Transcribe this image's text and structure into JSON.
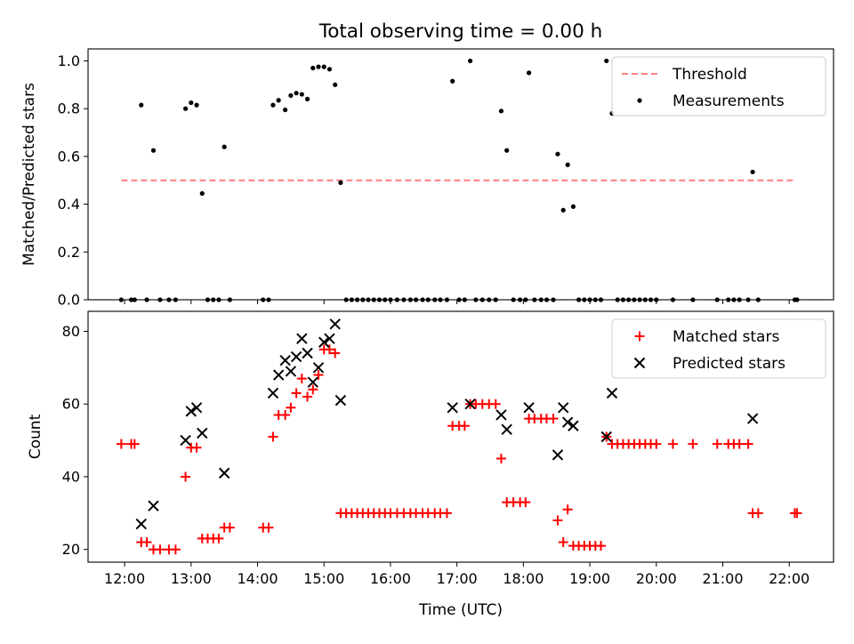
{
  "figure": {
    "title": "Total observing time = 0.00 h",
    "xlabel": "Time (UTC)"
  },
  "chart_data": [
    {
      "type": "scatter",
      "ylabel": "Matched/Predicted stars",
      "xlim": [
        "11:27",
        "22:40"
      ],
      "ylim": [
        0,
        1.05
      ],
      "yticks": [
        "0.0",
        "0.2",
        "0.4",
        "0.6",
        "0.8",
        "1.0"
      ],
      "xticks": [
        "12:00",
        "13:00",
        "14:00",
        "15:00",
        "16:00",
        "17:00",
        "18:00",
        "19:00",
        "20:00",
        "21:00",
        "22:00"
      ],
      "legend": {
        "placement": "top-right",
        "entries": [
          "Threshold",
          "Measurements"
        ]
      },
      "threshold": {
        "name": "Threshold",
        "value": 0.5,
        "x_start": "11:57",
        "x_end": "22:05",
        "color": "#ff7f7f",
        "style": "dashed"
      },
      "series": [
        {
          "name": "Measurements",
          "color": "#000000",
          "marker": "dot",
          "points": [
            [
              "11:57",
              0
            ],
            [
              "12:06",
              0
            ],
            [
              "12:09",
              0
            ],
            [
              "12:15",
              0.815
            ],
            [
              "12:20",
              0
            ],
            [
              "12:26",
              0.625
            ],
            [
              "12:32",
              0
            ],
            [
              "12:40",
              0
            ],
            [
              "12:46",
              0
            ],
            [
              "12:55",
              0.8
            ],
            [
              "13:00",
              0.825
            ],
            [
              "13:05",
              0.815
            ],
            [
              "13:10",
              0.445
            ],
            [
              "13:15",
              0
            ],
            [
              "13:20",
              0
            ],
            [
              "13:25",
              0
            ],
            [
              "13:30",
              0.64
            ],
            [
              "13:35",
              0
            ],
            [
              "14:05",
              0
            ],
            [
              "14:10",
              0
            ],
            [
              "14:14",
              0.815
            ],
            [
              "14:19",
              0.835
            ],
            [
              "14:25",
              0.795
            ],
            [
              "14:30",
              0.855
            ],
            [
              "14:35",
              0.865
            ],
            [
              "14:40",
              0.86
            ],
            [
              "14:45",
              0.84
            ],
            [
              "14:50",
              0.97
            ],
            [
              "14:55",
              0.975
            ],
            [
              "15:00",
              0.975
            ],
            [
              "15:05",
              0.965
            ],
            [
              "15:10",
              0.9
            ],
            [
              "15:15",
              0.49
            ],
            [
              "15:20",
              0
            ],
            [
              "15:25",
              0
            ],
            [
              "15:30",
              0
            ],
            [
              "15:35",
              0
            ],
            [
              "15:40",
              0
            ],
            [
              "15:45",
              0
            ],
            [
              "15:50",
              0
            ],
            [
              "15:55",
              0
            ],
            [
              "16:00",
              0
            ],
            [
              "16:06",
              0
            ],
            [
              "16:12",
              0
            ],
            [
              "16:18",
              0
            ],
            [
              "16:23",
              0
            ],
            [
              "16:29",
              0
            ],
            [
              "16:34",
              0
            ],
            [
              "16:40",
              0
            ],
            [
              "16:45",
              0
            ],
            [
              "16:51",
              0
            ],
            [
              "16:56",
              0.915
            ],
            [
              "17:02",
              0
            ],
            [
              "17:07",
              0
            ],
            [
              "17:12",
              1.0
            ],
            [
              "17:17",
              0
            ],
            [
              "17:23",
              0
            ],
            [
              "17:29",
              0
            ],
            [
              "17:35",
              0
            ],
            [
              "17:40",
              0.79
            ],
            [
              "17:45",
              0.625
            ],
            [
              "17:51",
              0
            ],
            [
              "17:57",
              0
            ],
            [
              "18:02",
              0
            ],
            [
              "18:05",
              0.95
            ],
            [
              "18:10",
              0
            ],
            [
              "18:16",
              0
            ],
            [
              "18:21",
              0
            ],
            [
              "18:27",
              0
            ],
            [
              "18:31",
              0.61
            ],
            [
              "18:36",
              0.375
            ],
            [
              "18:40",
              0.565
            ],
            [
              "18:45",
              0.39
            ],
            [
              "18:50",
              0
            ],
            [
              "18:55",
              0
            ],
            [
              "19:00",
              0
            ],
            [
              "19:05",
              0
            ],
            [
              "19:10",
              0
            ],
            [
              "19:15",
              1.0
            ],
            [
              "19:20",
              0.78
            ],
            [
              "19:25",
              0
            ],
            [
              "19:30",
              0
            ],
            [
              "19:35",
              0
            ],
            [
              "19:40",
              0
            ],
            [
              "19:45",
              0
            ],
            [
              "19:50",
              0
            ],
            [
              "19:55",
              0
            ],
            [
              "20:00",
              0
            ],
            [
              "20:15",
              0
            ],
            [
              "20:33",
              0
            ],
            [
              "20:55",
              0
            ],
            [
              "21:05",
              0
            ],
            [
              "21:10",
              0
            ],
            [
              "21:15",
              0
            ],
            [
              "21:23",
              0
            ],
            [
              "21:27",
              0.535
            ],
            [
              "21:32",
              0
            ],
            [
              "22:05",
              0
            ],
            [
              "22:07",
              0
            ]
          ]
        }
      ]
    },
    {
      "type": "scatter",
      "ylabel": "Count",
      "xlim": [
        "11:27",
        "22:40"
      ],
      "ylim": [
        16.5,
        85.5
      ],
      "yticks": [
        "20",
        "40",
        "60",
        "80"
      ],
      "xticks": [
        "12:00",
        "13:00",
        "14:00",
        "15:00",
        "16:00",
        "17:00",
        "18:00",
        "19:00",
        "20:00",
        "21:00",
        "22:00"
      ],
      "legend": {
        "placement": "top-right",
        "entries": [
          "Matched stars",
          "Predicted stars"
        ]
      },
      "series": [
        {
          "name": "Matched stars",
          "color": "#ff0000",
          "marker": "plus",
          "points": [
            [
              "11:57",
              49
            ],
            [
              "12:06",
              49
            ],
            [
              "12:09",
              49
            ],
            [
              "12:15",
              22
            ],
            [
              "12:20",
              22
            ],
            [
              "12:26",
              20
            ],
            [
              "12:32",
              20
            ],
            [
              "12:40",
              20
            ],
            [
              "12:46",
              20
            ],
            [
              "12:55",
              40
            ],
            [
              "13:00",
              48
            ],
            [
              "13:05",
              48
            ],
            [
              "13:10",
              23
            ],
            [
              "13:15",
              23
            ],
            [
              "13:20",
              23
            ],
            [
              "13:25",
              23
            ],
            [
              "13:30",
              26
            ],
            [
              "13:35",
              26
            ],
            [
              "14:05",
              26
            ],
            [
              "14:10",
              26
            ],
            [
              "14:14",
              51
            ],
            [
              "14:19",
              57
            ],
            [
              "14:25",
              57
            ],
            [
              "14:30",
              59
            ],
            [
              "14:35",
              63
            ],
            [
              "14:40",
              67
            ],
            [
              "14:45",
              62
            ],
            [
              "14:50",
              64
            ],
            [
              "14:55",
              68
            ],
            [
              "15:00",
              75
            ],
            [
              "15:05",
              75
            ],
            [
              "15:10",
              74
            ],
            [
              "15:15",
              30
            ],
            [
              "15:20",
              30
            ],
            [
              "15:25",
              30
            ],
            [
              "15:30",
              30
            ],
            [
              "15:35",
              30
            ],
            [
              "15:40",
              30
            ],
            [
              "15:45",
              30
            ],
            [
              "15:50",
              30
            ],
            [
              "15:55",
              30
            ],
            [
              "16:00",
              30
            ],
            [
              "16:06",
              30
            ],
            [
              "16:12",
              30
            ],
            [
              "16:18",
              30
            ],
            [
              "16:23",
              30
            ],
            [
              "16:29",
              30
            ],
            [
              "16:34",
              30
            ],
            [
              "16:40",
              30
            ],
            [
              "16:45",
              30
            ],
            [
              "16:51",
              30
            ],
            [
              "16:56",
              54
            ],
            [
              "17:02",
              54
            ],
            [
              "17:07",
              54
            ],
            [
              "17:12",
              60
            ],
            [
              "17:17",
              60
            ],
            [
              "17:23",
              60
            ],
            [
              "17:29",
              60
            ],
            [
              "17:35",
              60
            ],
            [
              "17:40",
              45
            ],
            [
              "17:45",
              33
            ],
            [
              "17:51",
              33
            ],
            [
              "17:57",
              33
            ],
            [
              "18:02",
              33
            ],
            [
              "18:05",
              56
            ],
            [
              "18:10",
              56
            ],
            [
              "18:16",
              56
            ],
            [
              "18:21",
              56
            ],
            [
              "18:27",
              56
            ],
            [
              "18:31",
              28
            ],
            [
              "18:36",
              22
            ],
            [
              "18:40",
              31
            ],
            [
              "18:45",
              21
            ],
            [
              "18:50",
              21
            ],
            [
              "18:55",
              21
            ],
            [
              "19:00",
              21
            ],
            [
              "19:05",
              21
            ],
            [
              "19:10",
              21
            ],
            [
              "19:15",
              51
            ],
            [
              "19:20",
              49
            ],
            [
              "19:25",
              49
            ],
            [
              "19:30",
              49
            ],
            [
              "19:35",
              49
            ],
            [
              "19:40",
              49
            ],
            [
              "19:45",
              49
            ],
            [
              "19:50",
              49
            ],
            [
              "19:55",
              49
            ],
            [
              "20:00",
              49
            ],
            [
              "20:15",
              49
            ],
            [
              "20:33",
              49
            ],
            [
              "20:55",
              49
            ],
            [
              "21:05",
              49
            ],
            [
              "21:10",
              49
            ],
            [
              "21:15",
              49
            ],
            [
              "21:23",
              49
            ],
            [
              "21:27",
              30
            ],
            [
              "21:32",
              30
            ],
            [
              "22:05",
              30
            ],
            [
              "22:07",
              30
            ]
          ]
        },
        {
          "name": "Predicted stars",
          "color": "#000000",
          "marker": "x",
          "points": [
            [
              "12:15",
              27
            ],
            [
              "12:26",
              32
            ],
            [
              "12:55",
              50
            ],
            [
              "13:00",
              58
            ],
            [
              "13:05",
              59
            ],
            [
              "13:10",
              52
            ],
            [
              "13:30",
              41
            ],
            [
              "14:14",
              63
            ],
            [
              "14:19",
              68
            ],
            [
              "14:25",
              72
            ],
            [
              "14:30",
              69
            ],
            [
              "14:35",
              73
            ],
            [
              "14:40",
              78
            ],
            [
              "14:45",
              74
            ],
            [
              "14:50",
              66
            ],
            [
              "14:55",
              70
            ],
            [
              "15:00",
              77
            ],
            [
              "15:05",
              78
            ],
            [
              "15:10",
              82
            ],
            [
              "15:15",
              61
            ],
            [
              "16:56",
              59
            ],
            [
              "17:12",
              60
            ],
            [
              "17:40",
              57
            ],
            [
              "17:45",
              53
            ],
            [
              "18:05",
              59
            ],
            [
              "18:31",
              46
            ],
            [
              "18:36",
              59
            ],
            [
              "18:40",
              55
            ],
            [
              "18:45",
              54
            ],
            [
              "19:15",
              51
            ],
            [
              "19:20",
              63
            ],
            [
              "21:27",
              56
            ]
          ]
        }
      ]
    }
  ]
}
